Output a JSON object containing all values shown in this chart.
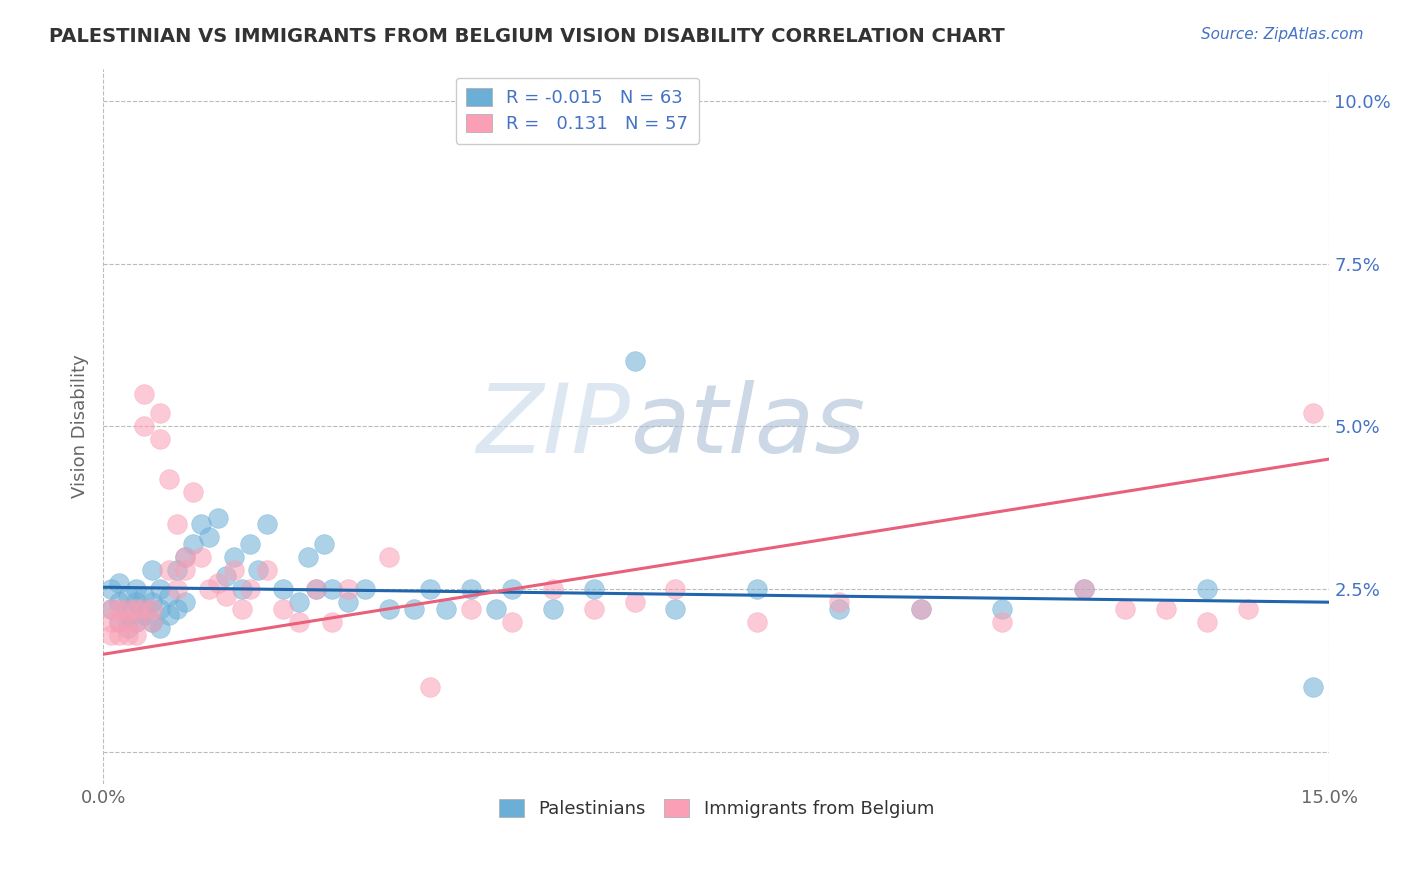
{
  "title": "PALESTINIAN VS IMMIGRANTS FROM BELGIUM VISION DISABILITY CORRELATION CHART",
  "source": "Source: ZipAtlas.com",
  "ylabel": "Vision Disability",
  "xlim": [
    0.0,
    0.15
  ],
  "ylim": [
    -0.005,
    0.105
  ],
  "yticks": [
    0.0,
    0.025,
    0.05,
    0.075,
    0.1
  ],
  "ytick_labels": [
    "",
    "2.5%",
    "5.0%",
    "7.5%",
    "10.0%"
  ],
  "xticks": [
    0.0,
    0.15
  ],
  "xtick_labels": [
    "0.0%",
    "15.0%"
  ],
  "color_blue": "#6baed6",
  "color_pink": "#fa9fb5",
  "line_blue": "#2166ac",
  "line_pink": "#e8607a",
  "grid_color": "#bbbbbb",
  "background_color": "#ffffff",
  "watermark_zip": "ZIP",
  "watermark_atlas": "atlas",
  "blue_scatter_x": [
    0.001,
    0.001,
    0.002,
    0.002,
    0.002,
    0.003,
    0.003,
    0.003,
    0.003,
    0.004,
    0.004,
    0.004,
    0.005,
    0.005,
    0.005,
    0.006,
    0.006,
    0.006,
    0.007,
    0.007,
    0.007,
    0.008,
    0.008,
    0.009,
    0.009,
    0.01,
    0.01,
    0.011,
    0.012,
    0.013,
    0.014,
    0.015,
    0.016,
    0.017,
    0.018,
    0.019,
    0.02,
    0.022,
    0.024,
    0.025,
    0.026,
    0.027,
    0.028,
    0.03,
    0.032,
    0.035,
    0.038,
    0.04,
    0.042,
    0.045,
    0.048,
    0.05,
    0.055,
    0.06,
    0.065,
    0.07,
    0.08,
    0.09,
    0.1,
    0.11,
    0.12,
    0.135,
    0.148
  ],
  "blue_scatter_y": [
    0.022,
    0.025,
    0.023,
    0.026,
    0.02,
    0.021,
    0.024,
    0.022,
    0.019,
    0.023,
    0.025,
    0.02,
    0.022,
    0.024,
    0.021,
    0.028,
    0.023,
    0.02,
    0.025,
    0.022,
    0.019,
    0.024,
    0.021,
    0.028,
    0.022,
    0.03,
    0.023,
    0.032,
    0.035,
    0.033,
    0.036,
    0.027,
    0.03,
    0.025,
    0.032,
    0.028,
    0.035,
    0.025,
    0.023,
    0.03,
    0.025,
    0.032,
    0.025,
    0.023,
    0.025,
    0.022,
    0.022,
    0.025,
    0.022,
    0.025,
    0.022,
    0.025,
    0.022,
    0.025,
    0.06,
    0.022,
    0.025,
    0.022,
    0.022,
    0.022,
    0.025,
    0.025,
    0.01
  ],
  "pink_scatter_x": [
    0.001,
    0.001,
    0.001,
    0.002,
    0.002,
    0.002,
    0.003,
    0.003,
    0.003,
    0.004,
    0.004,
    0.004,
    0.005,
    0.005,
    0.005,
    0.006,
    0.006,
    0.007,
    0.007,
    0.008,
    0.008,
    0.009,
    0.009,
    0.01,
    0.01,
    0.011,
    0.012,
    0.013,
    0.014,
    0.015,
    0.016,
    0.017,
    0.018,
    0.02,
    0.022,
    0.024,
    0.026,
    0.028,
    0.03,
    0.035,
    0.04,
    0.045,
    0.05,
    0.055,
    0.06,
    0.065,
    0.07,
    0.08,
    0.09,
    0.1,
    0.11,
    0.12,
    0.125,
    0.13,
    0.135,
    0.14,
    0.148
  ],
  "pink_scatter_y": [
    0.02,
    0.022,
    0.018,
    0.022,
    0.018,
    0.02,
    0.022,
    0.02,
    0.018,
    0.022,
    0.02,
    0.018,
    0.055,
    0.05,
    0.022,
    0.022,
    0.02,
    0.052,
    0.048,
    0.042,
    0.028,
    0.035,
    0.025,
    0.028,
    0.03,
    0.04,
    0.03,
    0.025,
    0.026,
    0.024,
    0.028,
    0.022,
    0.025,
    0.028,
    0.022,
    0.02,
    0.025,
    0.02,
    0.025,
    0.03,
    0.01,
    0.022,
    0.02,
    0.025,
    0.022,
    0.023,
    0.025,
    0.02,
    0.023,
    0.022,
    0.02,
    0.025,
    0.022,
    0.022,
    0.02,
    0.022,
    0.052
  ],
  "blue_line_x0": 0.0,
  "blue_line_x1": 0.15,
  "blue_line_y0": 0.0253,
  "blue_line_y1": 0.023,
  "pink_line_x0": 0.0,
  "pink_line_x1": 0.15,
  "pink_line_y0": 0.015,
  "pink_line_y1": 0.045
}
